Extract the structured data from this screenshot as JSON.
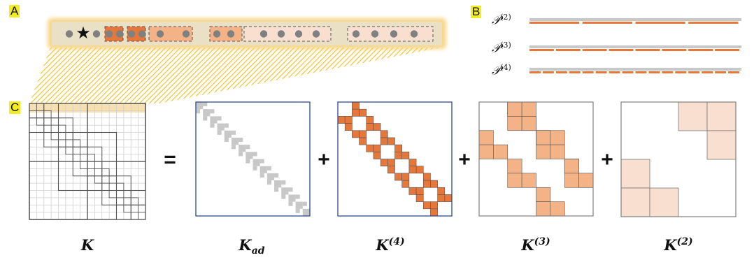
{
  "panel_labels": {
    "a": "A",
    "b": "B",
    "c": "C"
  },
  "b_rows": [
    {
      "base": "𝒫",
      "sup": "(2)",
      "segments": 4
    },
    {
      "base": "𝒫",
      "sup": "(3)",
      "segments": 8
    },
    {
      "base": "𝒫",
      "sup": "(4)",
      "segments": 16
    }
  ],
  "operators": {
    "equals": "=",
    "plus": "+"
  },
  "captions": {
    "k": {
      "base": "K",
      "sub": "",
      "sup": ""
    },
    "kad": {
      "base": "K",
      "sub": "ad",
      "sup": ""
    },
    "k4": {
      "base": "K",
      "sub": "",
      "sup": "(4)"
    },
    "k3": {
      "base": "K",
      "sub": "",
      "sup": "(3)"
    },
    "k2": {
      "base": "K",
      "sub": "",
      "sup": "(2)"
    }
  },
  "star_glyph": "★",
  "colors": {
    "highlight": "#f4ec22",
    "strip_bg": "#e9e0c5",
    "strip_glow": "#f7d27a",
    "dot": "#808080",
    "orange_dark": "#e5773a",
    "orange_mid": "#f3b386",
    "orange_light": "#f9dfcf",
    "gray_block": "#c8c8c8",
    "hatch": "#f0c020",
    "matrix_border_blue": "#2e4a8c",
    "matrix_border_gray": "#808080"
  }
}
